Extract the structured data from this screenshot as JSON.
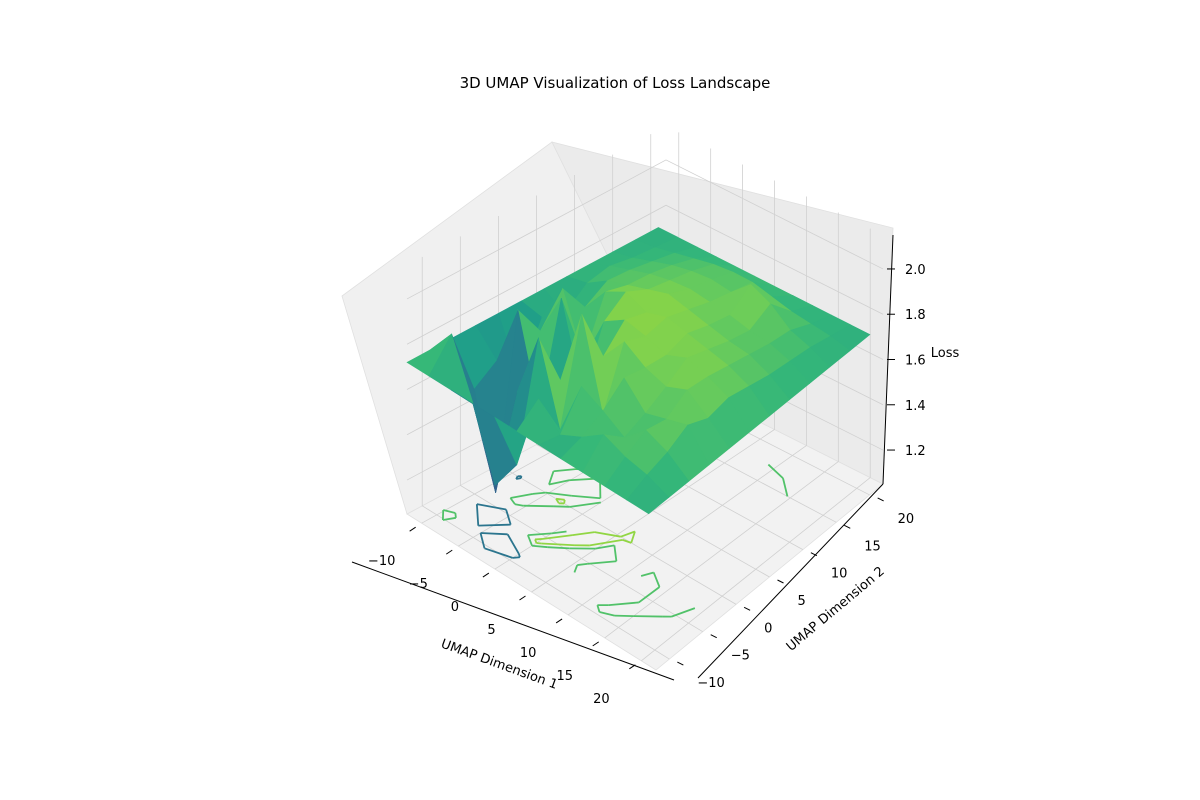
{
  "chart_data": {
    "type": "surface3d",
    "title": "3D UMAP Visualization of Loss Landscape",
    "xlabel": "UMAP Dimension 1",
    "ylabel": "UMAP Dimension 2",
    "zlabel": "Loss",
    "xlim": [
      -12,
      22
    ],
    "ylim": [
      -12,
      22
    ],
    "zlim": [
      1.05,
      2.15
    ],
    "x_ticks": [
      "−10",
      "−5",
      "0",
      "5",
      "10",
      "15",
      "20"
    ],
    "x_tick_values": [
      -10,
      -5,
      0,
      5,
      10,
      15,
      20
    ],
    "y_ticks": [
      "−10",
      "−5",
      "0",
      "5",
      "10",
      "15",
      "20"
    ],
    "y_tick_values": [
      -10,
      -5,
      0,
      5,
      10,
      15,
      20
    ],
    "z_ticks": [
      "1.2",
      "1.4",
      "1.6",
      "1.8",
      "2.0"
    ],
    "z_tick_values": [
      1.2,
      1.4,
      1.6,
      1.8,
      2.0
    ],
    "colormap": "viridis",
    "base_loss": 1.72,
    "surface_grid_x": [
      -12,
      -9,
      -6,
      -3,
      0,
      3,
      6,
      9,
      12,
      15,
      18,
      21
    ],
    "surface_grid_y": [
      -12,
      -9,
      -6,
      -3,
      0,
      3,
      6,
      9,
      12,
      15,
      18,
      21
    ],
    "surface_loss": [
      [
        1.72,
        1.72,
        1.72,
        1.72,
        1.72,
        1.72,
        1.72,
        1.72,
        1.72,
        1.72,
        1.72,
        1.72
      ],
      [
        1.72,
        1.85,
        1.6,
        1.3,
        1.45,
        1.8,
        1.7,
        1.75,
        1.82,
        1.78,
        1.76,
        1.72
      ],
      [
        1.72,
        1.55,
        1.15,
        1.65,
        1.95,
        1.6,
        1.85,
        1.8,
        1.74,
        1.83,
        1.79,
        1.72
      ],
      [
        1.72,
        1.62,
        1.9,
        1.5,
        1.7,
        2.05,
        1.66,
        1.88,
        1.78,
        1.81,
        1.84,
        1.72
      ],
      [
        1.72,
        1.48,
        1.75,
        1.95,
        1.58,
        1.8,
        1.92,
        1.86,
        1.83,
        1.87,
        1.8,
        1.72
      ],
      [
        1.72,
        1.7,
        1.88,
        1.62,
        1.84,
        1.9,
        1.88,
        1.85,
        1.89,
        1.86,
        1.82,
        1.72
      ],
      [
        1.72,
        1.66,
        1.74,
        1.86,
        1.91,
        1.87,
        1.9,
        1.88,
        1.86,
        1.84,
        1.8,
        1.72
      ],
      [
        1.72,
        1.74,
        1.8,
        1.83,
        1.86,
        1.89,
        1.87,
        1.85,
        1.83,
        1.82,
        1.78,
        1.72
      ],
      [
        1.72,
        1.76,
        1.79,
        1.82,
        1.84,
        1.85,
        1.84,
        1.83,
        1.81,
        1.8,
        1.77,
        1.72
      ],
      [
        1.72,
        1.74,
        1.77,
        1.8,
        1.82,
        1.83,
        1.82,
        1.9,
        1.86,
        1.79,
        1.76,
        1.72
      ],
      [
        1.72,
        1.73,
        1.75,
        1.77,
        1.79,
        1.8,
        1.8,
        1.78,
        1.76,
        1.75,
        1.74,
        1.72
      ],
      [
        1.72,
        1.72,
        1.72,
        1.72,
        1.72,
        1.72,
        1.72,
        1.72,
        1.72,
        1.72,
        1.72,
        1.72
      ]
    ]
  }
}
